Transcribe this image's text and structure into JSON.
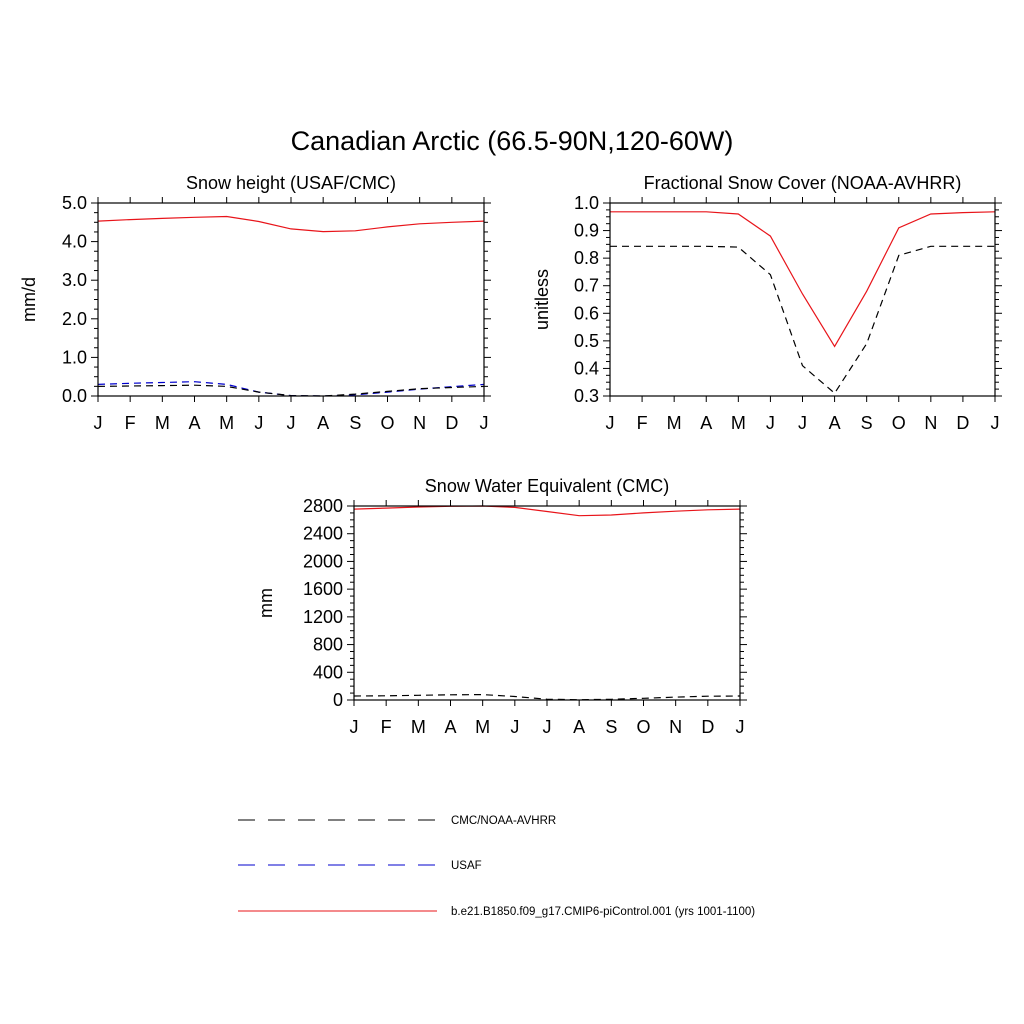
{
  "figure": {
    "title": "Canadian Arctic (66.5-90N,120-60W)"
  },
  "colors": {
    "obs": "#000000",
    "usaf": "#0000cc",
    "model": "#e8141a"
  },
  "legend": {
    "placement": "bottom-center",
    "items": [
      {
        "label": "CMC/NOAA-AVHRR",
        "color": "#000000",
        "style": "dashed"
      },
      {
        "label": "USAF",
        "color": "#0000cc",
        "style": "dashed"
      },
      {
        "label": "b.e21.B1850.f09_g17.CMIP6-piControl.001 (yrs 1001-1100)",
        "color": "#e8141a",
        "style": "solid"
      }
    ]
  },
  "chart_data": [
    {
      "type": "line",
      "title": "Snow height (USAF/CMC)",
      "xlabel": "",
      "ylabel": "mm/d",
      "categories": [
        "J",
        "F",
        "M",
        "A",
        "M",
        "J",
        "J",
        "A",
        "S",
        "O",
        "N",
        "D",
        "J"
      ],
      "ylim": [
        0,
        5
      ],
      "yticks": [
        "0.0",
        "1.0",
        "2.0",
        "3.0",
        "4.0",
        "5.0"
      ],
      "ytick_values": [
        0,
        1,
        2,
        3,
        4,
        5
      ],
      "series": [
        {
          "name": "b.e21.B1850.f09_g17.CMIP6-piControl.001 (yrs 1001-1100)",
          "style": "solid",
          "color": "#e8141a",
          "values": [
            4.53,
            4.57,
            4.6,
            4.63,
            4.65,
            4.52,
            4.33,
            4.26,
            4.28,
            4.38,
            4.46,
            4.5,
            4.53
          ]
        },
        {
          "name": "USAF",
          "style": "dashed",
          "color": "#0000cc",
          "values": [
            0.3,
            0.33,
            0.35,
            0.37,
            0.3,
            0.1,
            0.01,
            0.0,
            0.03,
            0.1,
            0.18,
            0.24,
            0.3
          ]
        },
        {
          "name": "CMC/NOAA-AVHRR",
          "style": "dashed",
          "color": "#000000",
          "values": [
            0.25,
            0.26,
            0.27,
            0.28,
            0.25,
            0.1,
            0.01,
            0.0,
            0.05,
            0.12,
            0.19,
            0.22,
            0.25
          ]
        }
      ]
    },
    {
      "type": "line",
      "title": "Fractional Snow Cover (NOAA-AVHRR)",
      "xlabel": "",
      "ylabel": "unitless",
      "categories": [
        "J",
        "F",
        "M",
        "A",
        "M",
        "J",
        "J",
        "A",
        "S",
        "O",
        "N",
        "D",
        "J"
      ],
      "ylim": [
        0.3,
        1.0
      ],
      "yticks": [
        "0.3",
        "0.4",
        "0.5",
        "0.6",
        "0.7",
        "0.8",
        "0.9",
        "1.0"
      ],
      "ytick_values": [
        0.3,
        0.4,
        0.5,
        0.6,
        0.7,
        0.8,
        0.9,
        1.0
      ],
      "series": [
        {
          "name": "b.e21.B1850.f09_g17.CMIP6-piControl.001 (yrs 1001-1100)",
          "style": "solid",
          "color": "#e8141a",
          "values": [
            0.968,
            0.968,
            0.968,
            0.968,
            0.96,
            0.88,
            0.67,
            0.48,
            0.68,
            0.91,
            0.96,
            0.965,
            0.968
          ]
        },
        {
          "name": "CMC/NOAA-AVHRR",
          "style": "dashed",
          "color": "#000000",
          "values": [
            0.843,
            0.843,
            0.843,
            0.843,
            0.84,
            0.74,
            0.41,
            0.31,
            0.49,
            0.81,
            0.843,
            0.843,
            0.843
          ]
        }
      ]
    },
    {
      "type": "line",
      "title": "Snow Water Equivalent (CMC)",
      "xlabel": "",
      "ylabel": "mm",
      "categories": [
        "J",
        "F",
        "M",
        "A",
        "M",
        "J",
        "J",
        "A",
        "S",
        "O",
        "N",
        "D",
        "J"
      ],
      "ylim": [
        0,
        2800
      ],
      "yticks": [
        "0",
        "400",
        "800",
        "1200",
        "1600",
        "2000",
        "2400",
        "2800"
      ],
      "ytick_values": [
        0,
        400,
        800,
        1200,
        1600,
        2000,
        2400,
        2800
      ],
      "series": [
        {
          "name": "b.e21.B1850.f09_g17.CMIP6-piControl.001 (yrs 1001-1100)",
          "style": "solid",
          "color": "#e8141a",
          "values": [
            2755,
            2770,
            2785,
            2795,
            2800,
            2780,
            2720,
            2660,
            2670,
            2700,
            2725,
            2745,
            2755
          ]
        },
        {
          "name": "CMC/NOAA-AVHRR",
          "style": "dashed",
          "color": "#000000",
          "values": [
            58,
            60,
            68,
            75,
            78,
            50,
            12,
            5,
            10,
            25,
            42,
            55,
            58
          ]
        }
      ]
    }
  ]
}
